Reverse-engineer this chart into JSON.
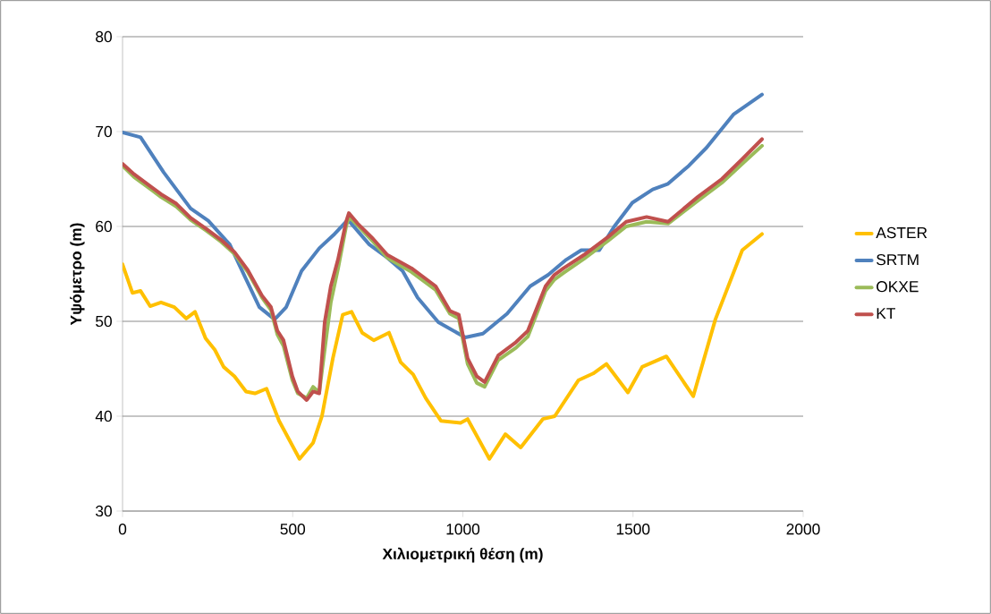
{
  "chart_data": {
    "type": "line",
    "xlabel": "Χιλιομετρική θέση (m)",
    "ylabel": "Υψόμετρο (m)",
    "xlim": [
      0,
      2000
    ],
    "xticks": [
      0,
      500,
      1000,
      1500,
      2000
    ],
    "ylim": [
      30,
      80
    ],
    "yticks": [
      30,
      40,
      50,
      60,
      70,
      80
    ],
    "grid": "y",
    "legend": "right",
    "marker": "none",
    "line_style": "solid",
    "series": [
      {
        "name": "ASTER",
        "color": "#ffc000",
        "x": [
          0,
          29,
          53,
          81,
          113,
          152,
          187,
          213,
          244,
          271,
          297,
          329,
          363,
          389,
          423,
          460,
          520,
          560,
          586,
          618,
          647,
          673,
          704,
          738,
          783,
          817,
          854,
          891,
          936,
          993,
          1014,
          1078,
          1125,
          1170,
          1235,
          1270,
          1340,
          1383,
          1422,
          1485,
          1527,
          1598,
          1677,
          1742,
          1821,
          1879
        ],
        "values": [
          56,
          53,
          53.2,
          51.6,
          52,
          51.5,
          50.3,
          51,
          48.2,
          47,
          45.2,
          44.2,
          42.6,
          42.4,
          42.9,
          39.5,
          35.5,
          37.2,
          40,
          46.1,
          50.7,
          51,
          48.8,
          48,
          48.8,
          45.7,
          44.4,
          41.9,
          39.5,
          39.3,
          39.7,
          35.5,
          38.1,
          36.7,
          39.7,
          40,
          43.8,
          44.5,
          45.5,
          42.5,
          45.2,
          46.3,
          42.1,
          50.2,
          57.5,
          59.2
        ]
      },
      {
        "name": "SRTM",
        "color": "#4f81bd",
        "x": [
          0,
          53,
          121,
          200,
          252,
          315,
          357,
          402,
          447,
          481,
          526,
          578,
          620,
          657,
          665,
          725,
          778,
          823,
          867,
          928,
          1007,
          1059,
          1130,
          1198,
          1251,
          1304,
          1348,
          1401,
          1445,
          1498,
          1558,
          1603,
          1664,
          1716,
          1795,
          1879
        ],
        "values": [
          69.9,
          69.4,
          65.7,
          61.9,
          60.6,
          58.1,
          54.9,
          51.5,
          50.2,
          51.5,
          55.3,
          57.7,
          59.1,
          60.5,
          60.6,
          58.1,
          56.7,
          55.3,
          52.5,
          49.9,
          48.3,
          48.7,
          50.8,
          53.7,
          54.9,
          56.5,
          57.5,
          57.5,
          60,
          62.5,
          63.9,
          64.5,
          66.4,
          68.3,
          71.8,
          73.9
        ]
      },
      {
        "name": "ΟΚΧΕ",
        "color": "#9bbb59",
        "x": [
          0,
          34,
          87,
          113,
          158,
          200,
          244,
          289,
          329,
          368,
          410,
          436,
          455,
          473,
          499,
          515,
          541,
          560,
          578,
          594,
          612,
          633,
          657,
          665,
          691,
          736,
          778,
          849,
          920,
          962,
          988,
          1014,
          1041,
          1064,
          1104,
          1156,
          1191,
          1243,
          1269,
          1296,
          1356,
          1427,
          1480,
          1540,
          1603,
          1690,
          1761,
          1821,
          1879
        ],
        "values": [
          66.4,
          65.2,
          63.8,
          63.1,
          62.1,
          60.7,
          59.6,
          58.4,
          57.1,
          55.2,
          52.5,
          51.2,
          48.6,
          47.4,
          43.8,
          42.4,
          41.9,
          43.1,
          42.5,
          47,
          52,
          55.5,
          60,
          61,
          60.1,
          58.4,
          56.7,
          55.2,
          53.3,
          50.8,
          50.3,
          45.5,
          43.5,
          43.1,
          45.9,
          47.2,
          48.4,
          53.2,
          54.4,
          55.1,
          56.6,
          58.5,
          60,
          60.5,
          60.3,
          62.7,
          64.6,
          66.6,
          68.5
        ]
      },
      {
        "name": "ΚΤ",
        "color": "#c0504d",
        "x": [
          0,
          34,
          87,
          113,
          158,
          200,
          244,
          289,
          329,
          368,
          410,
          436,
          455,
          473,
          499,
          515,
          541,
          560,
          578,
          594,
          612,
          633,
          657,
          665,
          691,
          736,
          778,
          849,
          920,
          962,
          988,
          1014,
          1041,
          1064,
          1104,
          1156,
          1191,
          1243,
          1269,
          1296,
          1356,
          1427,
          1480,
          1540,
          1603,
          1690,
          1761,
          1821,
          1879
        ],
        "values": [
          66.6,
          65.5,
          64.1,
          63.4,
          62.4,
          60.9,
          59.8,
          58.6,
          57.3,
          55.4,
          52.7,
          51.5,
          49,
          48,
          44.2,
          42.6,
          41.7,
          42.6,
          42.4,
          49.9,
          53.7,
          56.5,
          60.5,
          61.4,
          60.3,
          58.7,
          57,
          55.6,
          53.7,
          51.1,
          50.7,
          46.1,
          44.2,
          43.6,
          46.4,
          47.8,
          49,
          53.7,
          54.9,
          55.6,
          57,
          58.9,
          60.5,
          61,
          60.5,
          63.1,
          65,
          67.1,
          69.2
        ]
      }
    ]
  }
}
